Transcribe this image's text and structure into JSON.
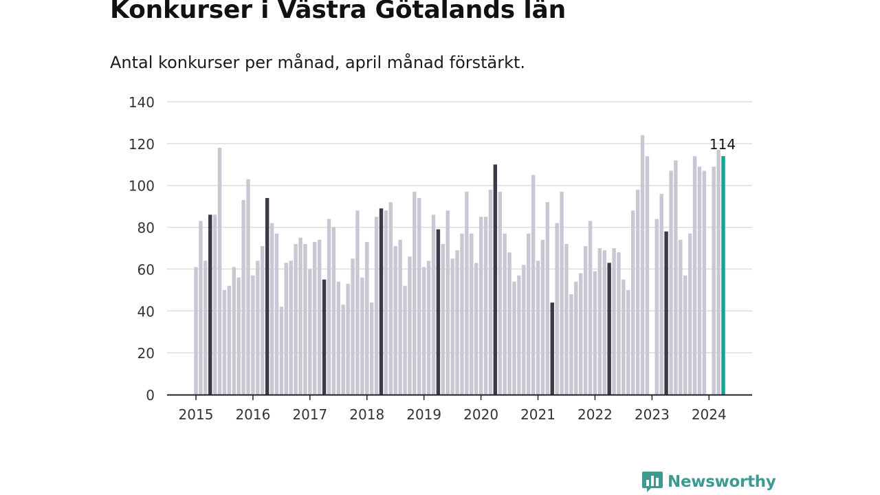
{
  "header": {
    "title": "Konkurser i Västra Götalands län",
    "subtitle": "Antal konkurser per månad, april månad förstärkt."
  },
  "brand": {
    "name": "Newsworthy",
    "icon": "bar-chart-speech-bubble-icon"
  },
  "colors": {
    "bar": "#c8c7d3",
    "highlight": "#3b3a46",
    "latest": "#14a394",
    "grid": "#dddddd",
    "axis": "#222222",
    "brand": "#3d9a91"
  },
  "chart_data": {
    "type": "bar",
    "title": "Konkurser i Västra Götalands län",
    "subtitle": "Antal konkurser per månad, april månad förstärkt.",
    "xlabel": "",
    "ylabel": "",
    "ylim": [
      0,
      140
    ],
    "yticks": [
      0,
      20,
      40,
      60,
      80,
      100,
      120,
      140
    ],
    "xtick_labels": [
      "2015",
      "2016",
      "2017",
      "2018",
      "2019",
      "2020",
      "2021",
      "2022",
      "2023",
      "2024"
    ],
    "grid": true,
    "highlight_month": "april",
    "annotation": {
      "label": "114",
      "category": "2024-04"
    },
    "series": [
      {
        "year": "2015",
        "values": [
          61,
          83,
          64,
          86,
          86,
          118,
          50,
          52,
          61,
          56,
          93,
          103
        ]
      },
      {
        "year": "2016",
        "values": [
          57,
          64,
          71,
          94,
          82,
          77,
          42,
          63,
          64,
          72,
          75,
          72
        ]
      },
      {
        "year": "2017",
        "values": [
          60,
          73,
          74,
          55,
          84,
          80,
          54,
          43,
          53,
          65,
          88,
          56
        ]
      },
      {
        "year": "2018",
        "values": [
          73,
          44,
          85,
          89,
          88,
          92,
          71,
          74,
          52,
          66,
          97,
          94
        ]
      },
      {
        "year": "2019",
        "values": [
          61,
          64,
          86,
          79,
          72,
          88,
          65,
          69,
          77,
          97,
          77,
          63
        ]
      },
      {
        "year": "2020",
        "values": [
          85,
          85,
          98,
          110,
          97,
          77,
          68,
          54,
          57,
          62,
          77,
          105
        ]
      },
      {
        "year": "2021",
        "values": [
          64,
          74,
          92,
          44,
          82,
          97,
          72,
          48,
          54,
          58,
          71,
          83
        ]
      },
      {
        "year": "2022",
        "values": [
          59,
          70,
          69,
          63,
          70,
          68,
          55,
          50,
          88,
          98,
          124,
          114
        ]
      },
      {
        "year": "2023",
        "values": [
          null,
          84,
          96,
          78,
          107,
          112,
          74,
          57,
          77,
          114,
          109,
          107
        ]
      },
      {
        "year": "2024",
        "values": [
          null,
          109,
          117,
          114
        ]
      }
    ]
  }
}
